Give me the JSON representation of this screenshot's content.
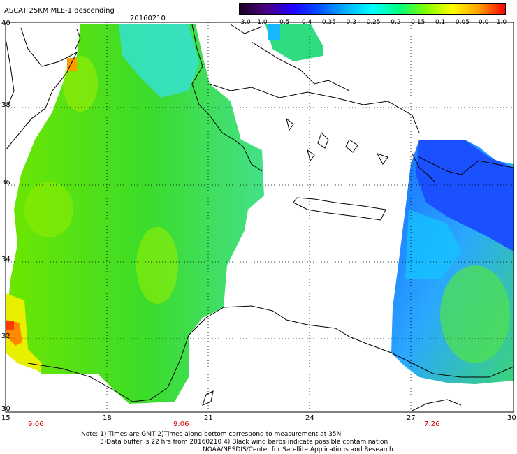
{
  "header": {
    "title": "ASCAT 25KM MLE-1 descending",
    "date": "20160210"
  },
  "colorbar": {
    "labels": [
      "-3.0",
      "-1.0",
      "-0.5",
      "-0.4",
      "-0.35",
      "-0.3",
      "-0.25",
      "-0.2",
      "-0.15",
      "-0.1",
      "-0.05",
      "0.0",
      "1.0"
    ],
    "colors": [
      "#1a0020",
      "#4b0082",
      "#1e00ff",
      "#0050ff",
      "#00b0ff",
      "#00ffff",
      "#00ff80",
      "#80ff00",
      "#ffff00",
      "#ffa000",
      "#ff0000"
    ]
  },
  "axes": {
    "lat_labels": [
      "40",
      "38",
      "36",
      "34",
      "32",
      "30"
    ],
    "lon_labels": [
      "15",
      "18",
      "21",
      "24",
      "27",
      "30"
    ]
  },
  "times": [
    "9:06",
    "9:06",
    "7:26"
  ],
  "notes": {
    "line1": "Note: 1) Times are GMT 2)Times along bottom correspond to measurement at 35N",
    "line2": "3)Data buffer is 22 hrs from 20160210 4) Black wind barbs indicate possible contamination",
    "line3": "NOAA/NESDIS/Center for Satellite Applications and Research"
  },
  "colors": {
    "background": "#ffffff",
    "coastline": "#000000",
    "time_label": "#d40000"
  }
}
